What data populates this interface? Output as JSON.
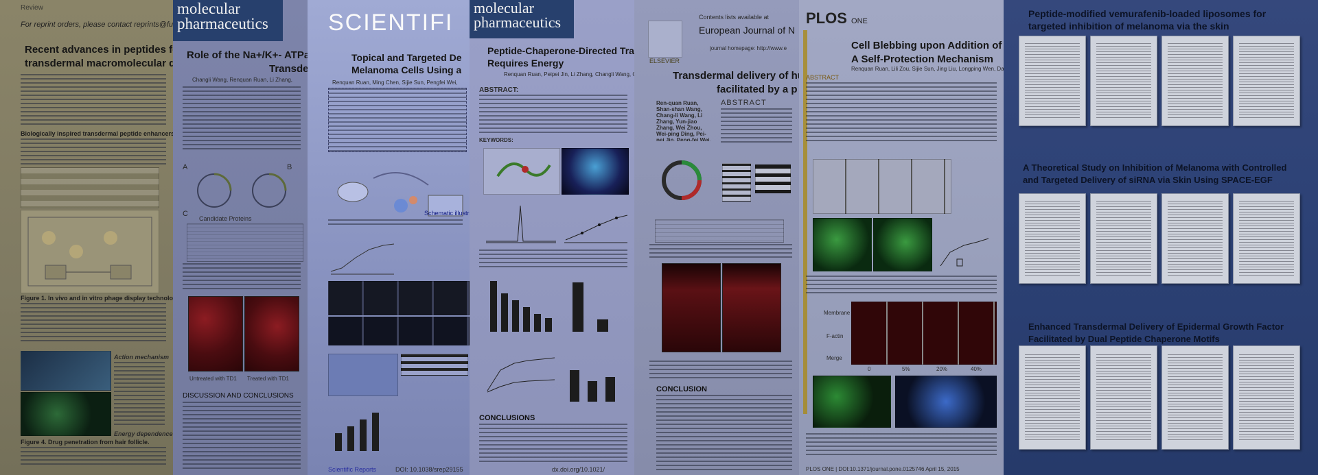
{
  "poster1": {
    "header_left": "Review",
    "reprint": "For reprint orders, please contact reprints@future-science.c",
    "title_line1": "Recent advances in peptides for e",
    "title_line2": "transdermal macromolecular dru",
    "section1": "Biologically inspired transdermal peptide enhancers",
    "caption1": "Figure 1. In vivo and in vitro phage display technology.",
    "subhead_a": "Action mechanism",
    "subhead_b": "Energy dependence",
    "caption2": "Figure 4. Drug penetration from hair follicle."
  },
  "poster2": {
    "logo_line1": "molecular",
    "logo_line2": "pharmaceutics",
    "title_line1": "Role of the Na+/K+- ATPas",
    "title_line2": "Transder",
    "authors": "Changli Wang, Renquan Ruan, Li Zhang,",
    "label_a": "A",
    "label_b": "B",
    "label_c": "C",
    "table_title": "Candidate Proteins",
    "label_untreated": "Untreated with TD1",
    "label_treated": "Treated with TD1",
    "section_discussion": "DISCUSSION AND CONCLUSIONS"
  },
  "poster3": {
    "journal": "SCIENTIFI",
    "title_line1": "Topical and Targeted De",
    "title_line2": "Melanoma Cells Using a",
    "authors": "Renquan Ruan, Ming Chen, Sijie Sun, Pengfei Wei,",
    "schematic_label": "Schematic illustratio",
    "footer_left": "Scientific Reports",
    "footer_doi": "DOI: 10.1038/srep29155"
  },
  "poster4": {
    "logo_line1": "molecular",
    "logo_line2": "pharmaceutics",
    "title_line1": "Peptide-Chaperone-Directed Tran",
    "title_line2": "Requires Energy",
    "authors": "Renquan Ruan, Peipei Jin, Li Zhang, Changli Wang, Chuanju",
    "abstract": "ABSTRACT:",
    "keywords": "KEYWORDS:",
    "section_conclusions": "CONCLUSIONS",
    "footer_doi": "dx.doi.org/10.1021/"
  },
  "poster5": {
    "top_line": "Contents lists available at",
    "journal": "European Journal of N",
    "homepage": "journal homepage: http://www.e",
    "publisher": "ELSEVIER",
    "title_line1": "Transdermal delivery of hum",
    "title_line2": "facilitated by a p",
    "authors": "Ren-quan Ruan, Shan-shan Wang, Chang-li Wang, Li Zhang, Yun-jiao Zhang, Wei Zhou, Wei-ping Ding, Pei-pei Jin, Peng-fei Wei, Na Man*, Long-ping Wen*",
    "abstract": "ABSTRACT",
    "section_conclusion": "CONCLUSION"
  },
  "poster6": {
    "journal_plos": "PLOS",
    "journal_one": "ONE",
    "title_line1": "Cell Blebbing upon Addition of Cryo",
    "title_line2": "A Self-Protection Mechanism",
    "authors": "Renquan Ruan, Lili Zou, Sijie Sun, Jing Liu, Longping Wen, Dayo",
    "abstract": "ABSTRACT",
    "label_membrane": "Membrane",
    "label_factin": "F-actin",
    "label_merge": "Merge",
    "pct_0": "0",
    "pct_5": "5%",
    "pct_20": "20%",
    "pct_40": "40%",
    "footer": "PLOS ONE | DOI:10.1371/journal.pone.0125746 April 15, 2015"
  },
  "poster7": {
    "title1_line1": "Peptide-modified vemurafenib-loaded liposomes for",
    "title1_line2": "targeted inhibition of melanoma via the skin",
    "title2_line1": "A Theoretical Study on Inhibition of Melanoma with Controlled",
    "title2_line2": "and Targeted Delivery of siRNA via Skin Using SPACE-EGF",
    "title3_line1": "Enhanced Transdermal Delivery of Epidermal Growth Factor",
    "title3_line2": "Facilitated by Dual Peptide Chaperone Motifs"
  },
  "colors": {
    "poster1_bg": "#8b8466",
    "poster2_bg": "#7c82a6",
    "poster3_bg": "#8e98c4",
    "poster4_bg": "#8f96c0",
    "poster5_bg": "#8a90b0",
    "poster6_bg": "#959cb8",
    "poster7_bg": "#2c4175",
    "mp_header": "#27406d",
    "plos_accent": "#b08a1a",
    "tissue_red": "#5a1014"
  }
}
